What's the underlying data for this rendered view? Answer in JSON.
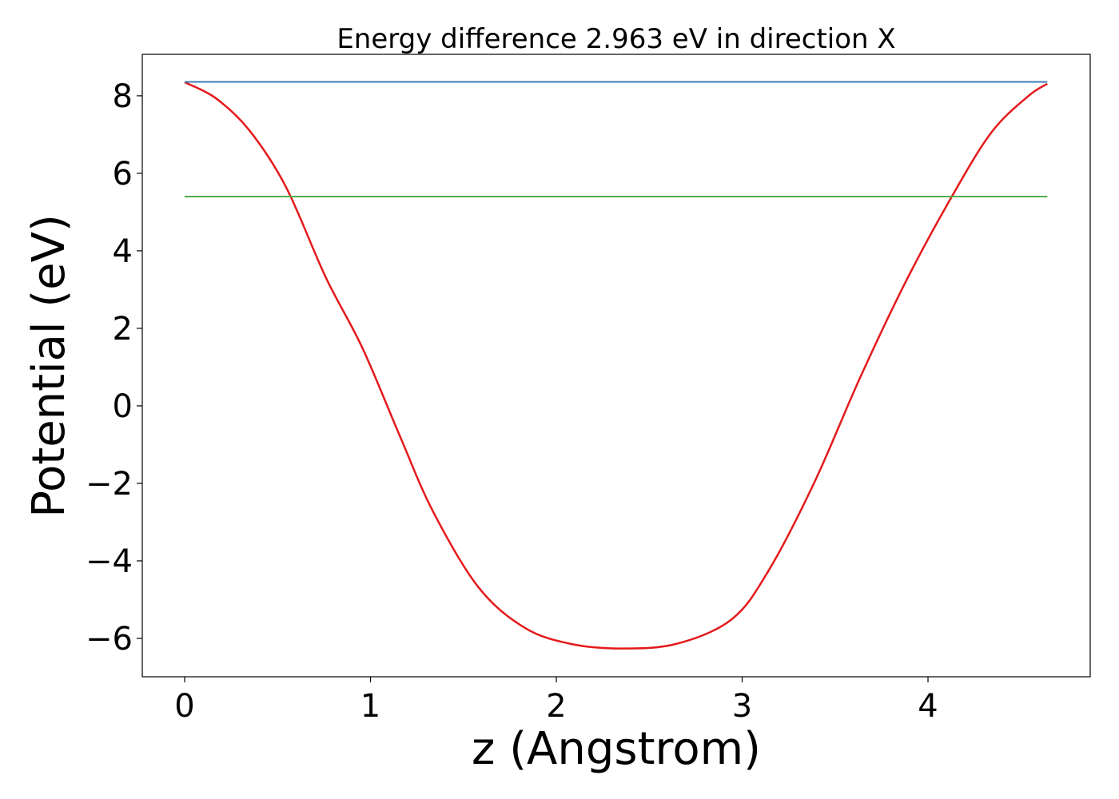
{
  "chart_data": {
    "type": "line",
    "title": "Energy difference 2.963 eV in direction X",
    "xlabel": "z (Angstrom)",
    "ylabel": "Potential (eV)",
    "xlim": [
      -0.228,
      4.873
    ],
    "ylim": [
      -6.99,
      9.07
    ],
    "xticks": [
      0,
      1,
      2,
      3,
      4
    ],
    "yticks": [
      -6,
      -4,
      -2,
      0,
      2,
      4,
      6,
      8
    ],
    "xtick_labels": [
      "0",
      "1",
      "2",
      "3",
      "4"
    ],
    "ytick_labels": [
      "−6",
      "−4",
      "−2",
      "0",
      "2",
      "4",
      "6",
      "8"
    ],
    "grid": false,
    "series": [
      {
        "color": "#e41a1c",
        "kind": "curve",
        "x": [
          0,
          0.167,
          0.348,
          0.545,
          0.759,
          0.956,
          1.154,
          1.335,
          1.581,
          1.828,
          2.075,
          2.351,
          2.647,
          2.943,
          3.14,
          3.388,
          3.634,
          3.881,
          4.127,
          4.342,
          4.539,
          4.642
        ],
        "y": [
          8.35,
          7.94,
          7.11,
          5.65,
          3.32,
          1.5,
          -0.73,
          -2.71,
          -4.68,
          -5.72,
          -6.14,
          -6.26,
          -6.14,
          -5.51,
          -4.27,
          -1.98,
          0.72,
          3.21,
          5.39,
          7.06,
          7.99,
          8.31
        ]
      },
      {
        "color": "#377eb8",
        "kind": "hline",
        "x": [
          0,
          4.642
        ],
        "y": [
          8.36,
          8.36
        ]
      },
      {
        "color": "#4daf4a",
        "kind": "hline",
        "x": [
          0,
          4.642
        ],
        "y": [
          5.4,
          5.4
        ]
      }
    ]
  }
}
